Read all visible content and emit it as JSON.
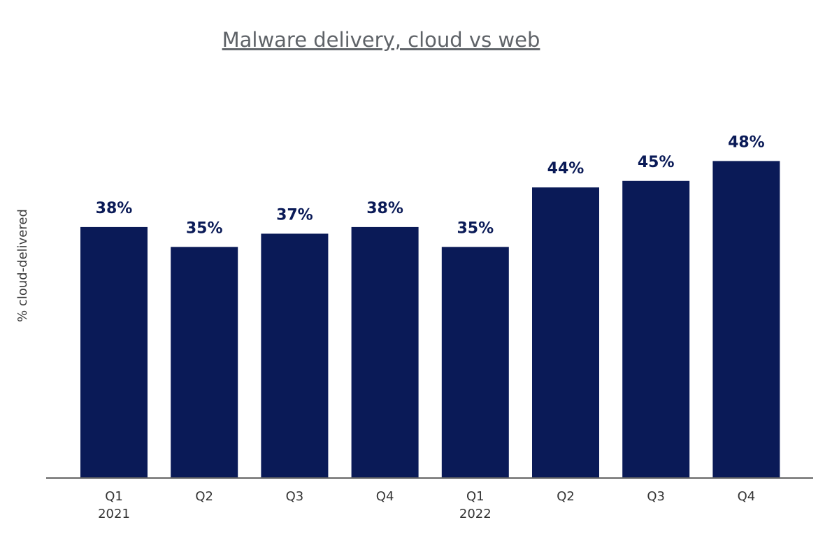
{
  "chart_data": {
    "type": "bar",
    "title": "Malware delivery, cloud vs web",
    "xlabel": "",
    "ylabel": "% cloud-delivered",
    "categories": [
      {
        "quarter": "Q1",
        "year": "2021"
      },
      {
        "quarter": "Q2",
        "year": ""
      },
      {
        "quarter": "Q3",
        "year": ""
      },
      {
        "quarter": "Q4",
        "year": ""
      },
      {
        "quarter": "Q1",
        "year": "2022"
      },
      {
        "quarter": "Q2",
        "year": ""
      },
      {
        "quarter": "Q3",
        "year": ""
      },
      {
        "quarter": "Q4",
        "year": ""
      }
    ],
    "values": [
      38,
      35,
      37,
      38,
      35,
      44,
      45,
      48
    ],
    "data_labels": [
      "38%",
      "35%",
      "37%",
      "38%",
      "35%",
      "44%",
      "45%",
      "48%"
    ],
    "ylim": [
      0,
      50
    ],
    "grid": false,
    "legend": "none",
    "bar_color": "#0a1a57",
    "label_color": "#0a1a57",
    "axis_color": "#666666"
  }
}
